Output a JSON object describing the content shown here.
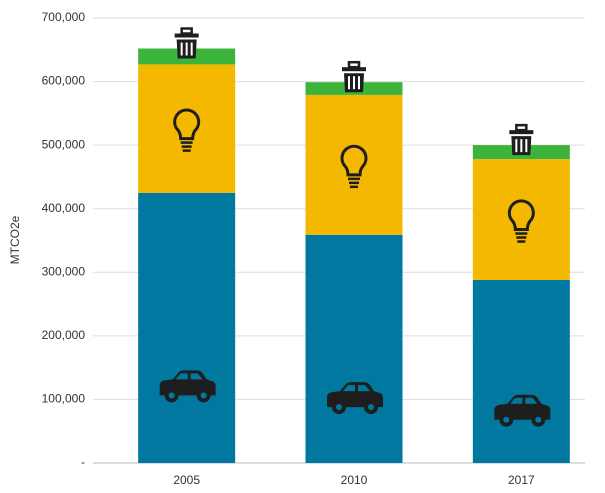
{
  "chart_data": {
    "type": "stacked_bar",
    "y_label": "MTCO2e",
    "categories": [
      "2005",
      "2010",
      "2017"
    ],
    "series": [
      {
        "color": "#0078a0",
        "values": [
          425000,
          359000,
          288000
        ]
      },
      {
        "color": "#f5b800",
        "values": [
          202000,
          220000,
          190000
        ]
      },
      {
        "color": "#3cb43c",
        "values": [
          25000,
          20000,
          22000
        ]
      }
    ],
    "ylim": [
      0,
      700000
    ],
    "yticks": [
      {
        "value": 0,
        "label": "-"
      },
      {
        "value": 100000,
        "label": "100,000"
      },
      {
        "value": 200000,
        "label": "200,000"
      },
      {
        "value": 300000,
        "label": "300,000"
      },
      {
        "value": 400000,
        "label": "400,000"
      },
      {
        "value": 500000,
        "label": "500,000"
      },
      {
        "value": 600000,
        "label": "600,000"
      },
      {
        "value": 700000,
        "label": "700,000"
      }
    ],
    "grid": true
  }
}
